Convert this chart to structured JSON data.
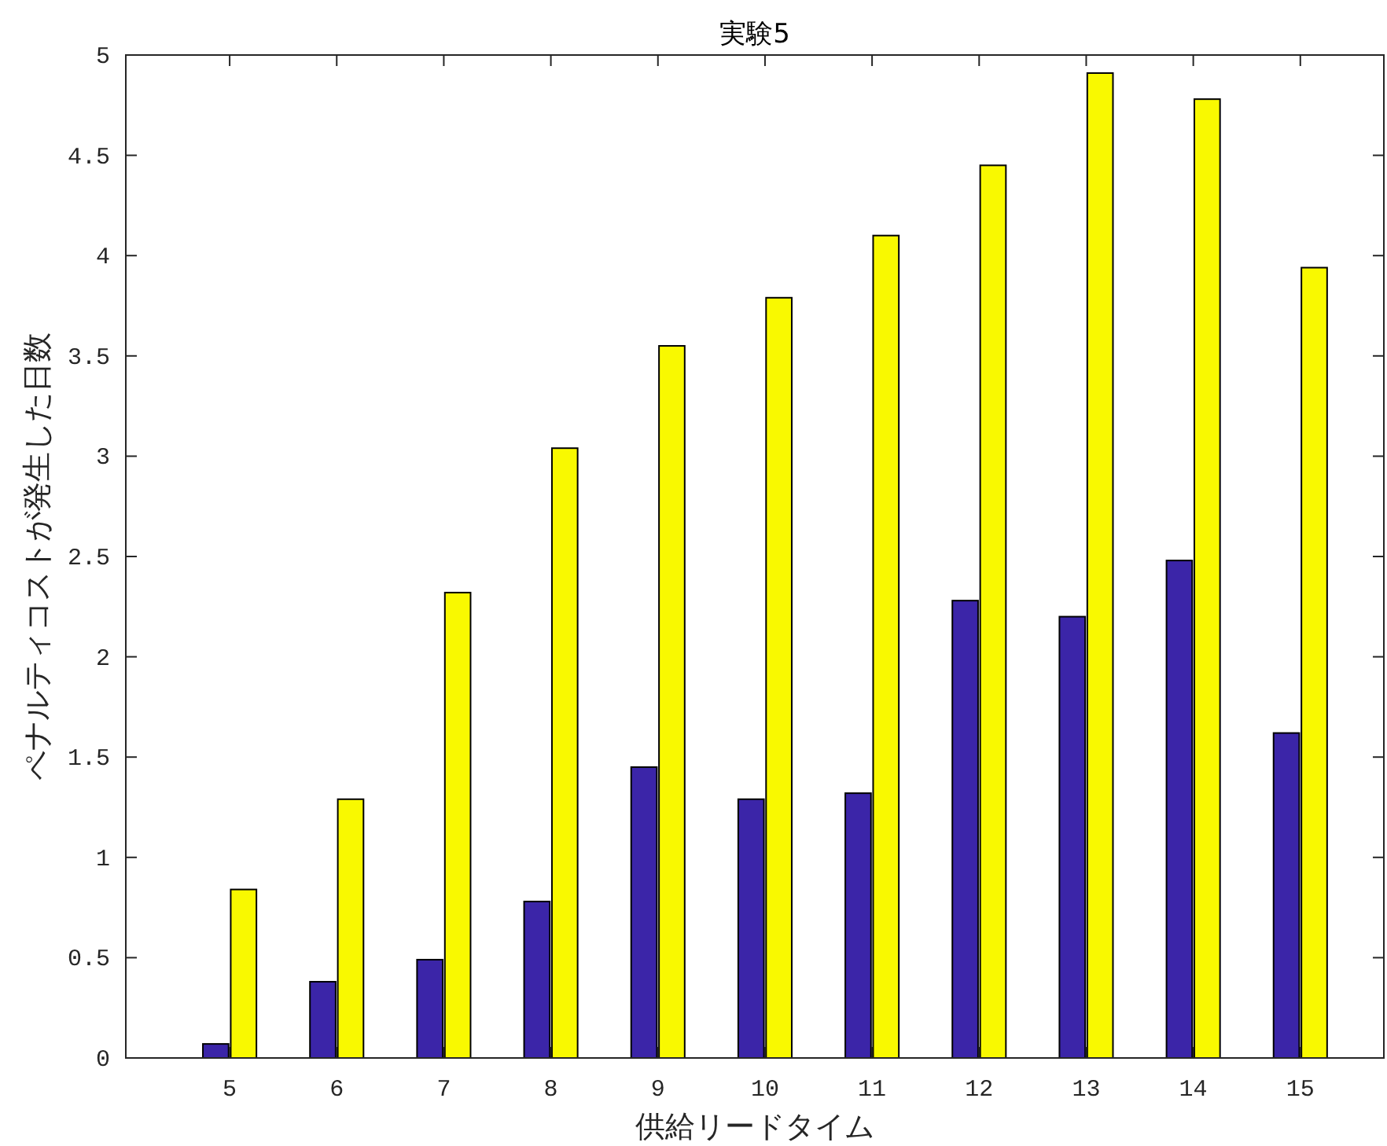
{
  "chart_data": {
    "type": "bar",
    "title": "実験5",
    "xlabel": "供給リードタイム",
    "ylabel": "ペナルティコストが発生した日数",
    "categories": [
      "5",
      "6",
      "7",
      "8",
      "9",
      "10",
      "11",
      "12",
      "13",
      "14",
      "15"
    ],
    "series": [
      {
        "color": "#3b25a8",
        "values": [
          0.07,
          0.38,
          0.49,
          0.78,
          1.45,
          1.29,
          1.32,
          2.28,
          2.2,
          2.48,
          1.62
        ]
      },
      {
        "color": "#f9f900",
        "values": [
          0.84,
          1.29,
          2.32,
          3.04,
          3.55,
          3.79,
          4.1,
          4.45,
          4.91,
          4.78,
          3.94
        ]
      }
    ],
    "ylim": [
      0,
      5
    ],
    "yticks": [
      0,
      0.5,
      1,
      1.5,
      2,
      2.5,
      3,
      3.5,
      4,
      4.5,
      5
    ]
  }
}
